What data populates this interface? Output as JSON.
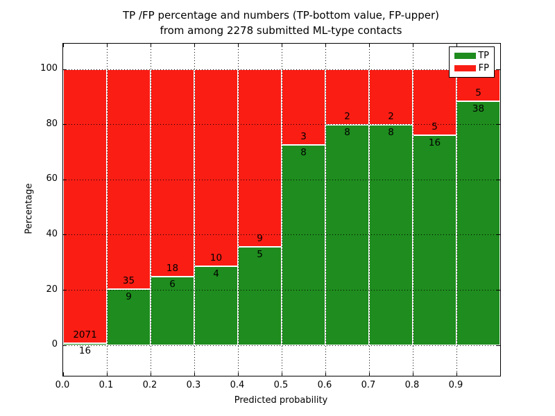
{
  "chart_data": {
    "type": "bar",
    "stacked": true,
    "normalized": "percent",
    "title_line1": "TP /FP percentage and numbers (TP-bottom value, FP-upper)",
    "title_line2": "from among 2278 submitted ML-type contacts",
    "total_contacts": 2278,
    "xlabel": "Predicted probability",
    "ylabel": "Percentage",
    "xlim": [
      0.0,
      1.0
    ],
    "ylim": [
      -11,
      109.3
    ],
    "yticks": [
      0,
      20,
      40,
      60,
      80,
      100
    ],
    "xticks": [
      "0.0",
      "0.1",
      "0.2",
      "0.3",
      "0.4",
      "0.5",
      "0.6",
      "0.7",
      "0.8",
      "0.9"
    ],
    "grid": "dotted-black-on",
    "bar_edge_color": "#ffffff",
    "categories": [
      "0.0-0.1",
      "0.1-0.2",
      "0.2-0.3",
      "0.3-0.4",
      "0.4-0.5",
      "0.5-0.6",
      "0.6-0.7",
      "0.7-0.8",
      "0.8-0.9",
      "0.9-1.0"
    ],
    "series": [
      {
        "name": "TP",
        "color": "#1e8c1e",
        "values": [
          16,
          9,
          6,
          4,
          5,
          8,
          8,
          8,
          16,
          38
        ]
      },
      {
        "name": "FP",
        "color": "#fa1d14",
        "values": [
          2071,
          35,
          18,
          10,
          9,
          3,
          2,
          2,
          5,
          5
        ]
      }
    ],
    "legend": {
      "position": "upper right",
      "entries": [
        {
          "label": "TP",
          "color": "#1e8c1e"
        },
        {
          "label": "FP",
          "color": "#fa1d14"
        }
      ]
    }
  }
}
